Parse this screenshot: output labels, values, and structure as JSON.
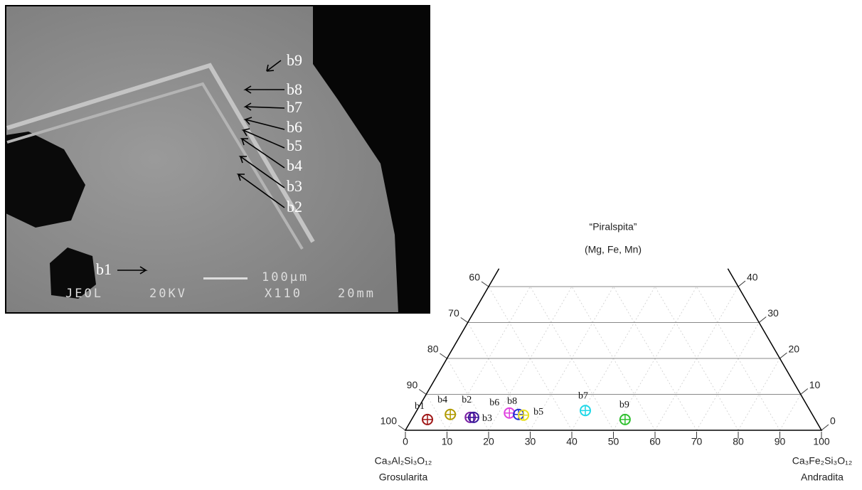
{
  "image": {
    "labels": [
      "b9",
      "b8",
      "b7",
      "b6",
      "b5",
      "b4",
      "b3",
      "b2",
      "b1"
    ],
    "footer": [
      "JEOL",
      "20KV",
      "X110",
      "20mm"
    ],
    "scale": "100μm"
  },
  "chart_data": {
    "type": "ternary",
    "top_label": [
      "“Piralspita”",
      "(Mg, Fe, Mn)"
    ],
    "left_label": [
      "Ca₃Al₂Si₃O₁₂",
      "Grosularita"
    ],
    "right_label": [
      "Ca₃Fe₂Si₃O₁₂",
      "Andradita"
    ],
    "bticks": [
      0,
      10,
      20,
      30,
      40,
      50,
      60,
      70,
      80,
      90,
      100
    ],
    "lticks": [
      60,
      70,
      80,
      90,
      100
    ],
    "rticks": [
      0,
      10,
      20,
      30,
      40
    ],
    "series": [
      {
        "name": "b1",
        "color": "#a01818",
        "andradita": 3.8,
        "piralspita": 3
      },
      {
        "name": "b4",
        "color": "#b09a00",
        "andradita": 8.6,
        "piralspita": 4.4
      },
      {
        "name": "b2",
        "color": "#7a1fa2",
        "andradita": 13.8,
        "piralspita": 3.6
      },
      {
        "name": "b3",
        "color": "#3a1a9a",
        "andradita": 14.6,
        "piralspita": 3.6
      },
      {
        "name": "b6",
        "color": "#e040e0",
        "andradita": 22.6,
        "piralspita": 4.8
      },
      {
        "name": "b8",
        "color": "#2030d0",
        "andradita": 25,
        "piralspita": 4.4
      },
      {
        "name": "b5",
        "color": "#e8e020",
        "andradita": 26.3,
        "piralspita": 4.2
      },
      {
        "name": "b7",
        "color": "#20d8e8",
        "andradita": 40.5,
        "piralspita": 5.5
      },
      {
        "name": "b9",
        "color": "#30c030",
        "andradita": 51.3,
        "piralspita": 3
      }
    ]
  }
}
